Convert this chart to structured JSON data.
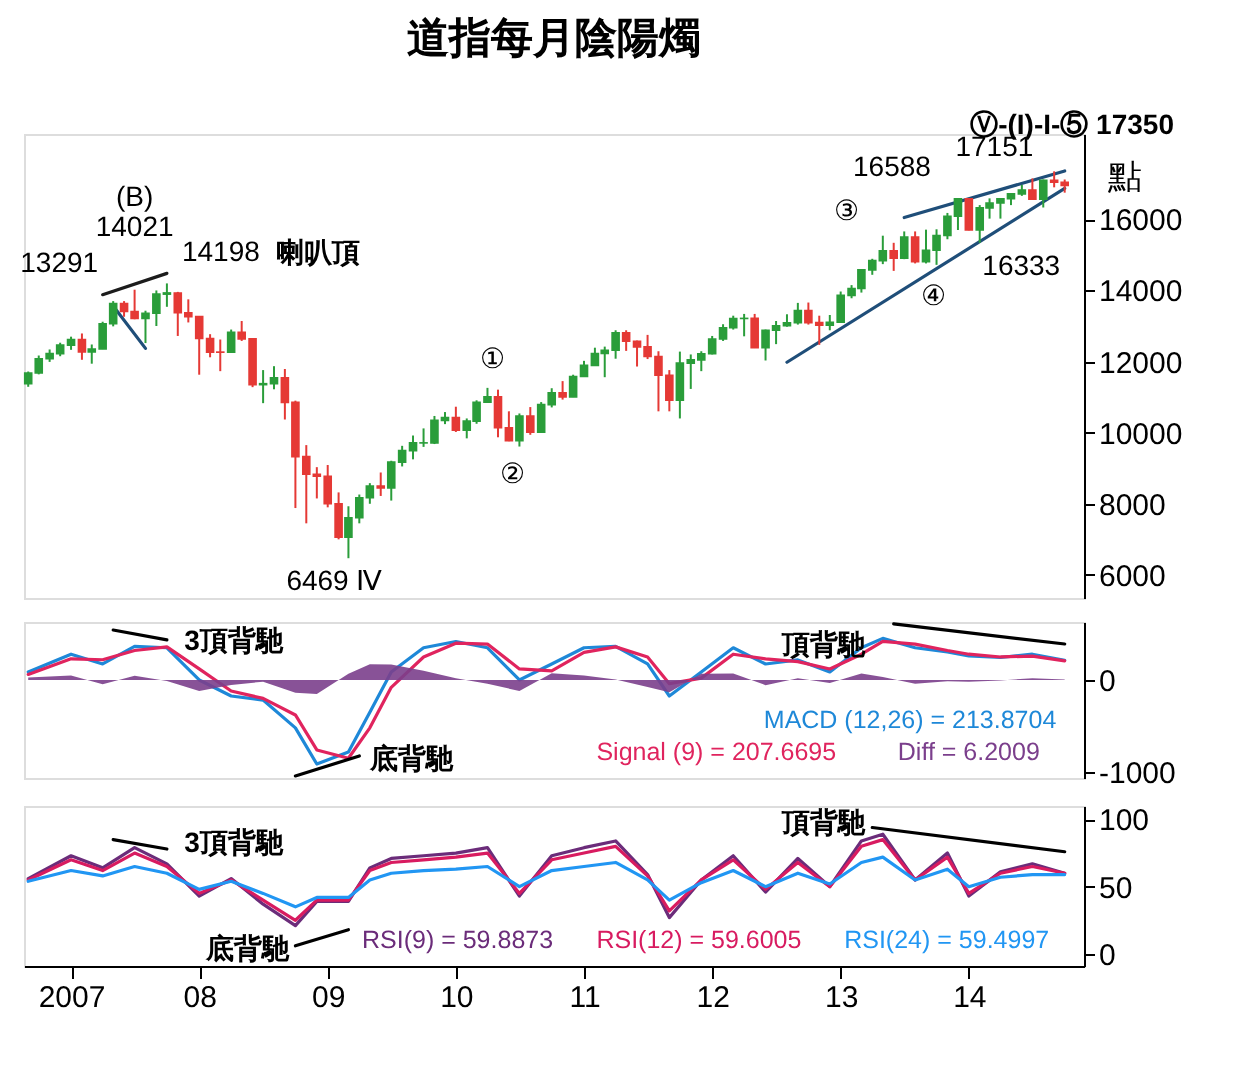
{
  "chart_data": [
    {
      "type": "candlestick",
      "title": "道指每月陰陽燭",
      "ylabel": "點",
      "tick_labels": "y",
      "grid": false,
      "xlim": [
        "2006-08-20",
        "2014-11-25"
      ],
      "ylim": [
        5350,
        18400
      ],
      "yticks": [
        6000,
        8000,
        10000,
        12000,
        14000,
        16000
      ],
      "x": [
        "2006-09",
        "2006-10",
        "2006-11",
        "2006-12",
        "2007-01",
        "2007-02",
        "2007-03",
        "2007-04",
        "2007-05",
        "2007-06",
        "2007-07",
        "2007-08",
        "2007-09",
        "2007-10",
        "2007-11",
        "2007-12",
        "2008-01",
        "2008-02",
        "2008-03",
        "2008-04",
        "2008-05",
        "2008-06",
        "2008-07",
        "2008-08",
        "2008-09",
        "2008-10",
        "2008-11",
        "2008-12",
        "2009-01",
        "2009-02",
        "2009-03",
        "2009-04",
        "2009-05",
        "2009-06",
        "2009-07",
        "2009-08",
        "2009-09",
        "2009-10",
        "2009-11",
        "2009-12",
        "2010-01",
        "2010-02",
        "2010-03",
        "2010-04",
        "2010-05",
        "2010-06",
        "2010-07",
        "2010-08",
        "2010-09",
        "2010-10",
        "2010-11",
        "2010-12",
        "2011-01",
        "2011-02",
        "2011-03",
        "2011-04",
        "2011-05",
        "2011-06",
        "2011-07",
        "2011-08",
        "2011-09",
        "2011-10",
        "2011-11",
        "2011-12",
        "2012-01",
        "2012-02",
        "2012-03",
        "2012-04",
        "2012-05",
        "2012-06",
        "2012-07",
        "2012-08",
        "2012-09",
        "2012-10",
        "2012-11",
        "2012-12",
        "2013-01",
        "2013-02",
        "2013-03",
        "2013-04",
        "2013-05",
        "2013-06",
        "2013-07",
        "2013-08",
        "2013-09",
        "2013-10",
        "2013-11",
        "2013-12",
        "2014-01",
        "2014-02",
        "2014-03",
        "2014-04",
        "2014-05",
        "2014-06",
        "2014-07",
        "2014-08",
        "2014-09",
        "2014-10"
      ],
      "ohlc": [
        [
          11380,
          11720,
          11290,
          11679
        ],
        [
          11679,
          12170,
          11640,
          12081
        ],
        [
          12081,
          12340,
          11990,
          12222
        ],
        [
          12222,
          12530,
          12150,
          12463
        ],
        [
          12463,
          12700,
          12330,
          12622
        ],
        [
          12622,
          12790,
          12050,
          12269
        ],
        [
          12269,
          12480,
          11940,
          12354
        ],
        [
          12354,
          13120,
          12350,
          13063
        ],
        [
          13063,
          13700,
          12990,
          13628
        ],
        [
          13628,
          13700,
          13260,
          13409
        ],
        [
          13409,
          14021,
          13190,
          13212
        ],
        [
          13212,
          13430,
          12520,
          13358
        ],
        [
          13358,
          14000,
          13000,
          13896
        ],
        [
          13896,
          14198,
          13540,
          13930
        ],
        [
          13930,
          13960,
          12720,
          13372
        ],
        [
          13372,
          13750,
          13100,
          13265
        ],
        [
          13265,
          13280,
          11630,
          12650
        ],
        [
          12650,
          12770,
          12120,
          12266
        ],
        [
          12266,
          12620,
          11730,
          12263
        ],
        [
          12263,
          12900,
          12240,
          12820
        ],
        [
          12820,
          13140,
          12580,
          12638
        ],
        [
          12638,
          12660,
          11280,
          11350
        ],
        [
          11350,
          11760,
          10830,
          11378
        ],
        [
          11378,
          11870,
          11220,
          11544
        ],
        [
          11544,
          11790,
          10370,
          10851
        ],
        [
          10851,
          10900,
          7880,
          9325
        ],
        [
          9325,
          9650,
          7450,
          8829
        ],
        [
          8829,
          9030,
          8150,
          8776
        ],
        [
          8776,
          9090,
          7900,
          8001
        ],
        [
          8001,
          8320,
          7000,
          7063
        ],
        [
          7063,
          7930,
          6469,
          7609
        ],
        [
          7609,
          8260,
          7450,
          8168
        ],
        [
          8168,
          8580,
          8000,
          8500
        ],
        [
          8500,
          8880,
          8220,
          8447
        ],
        [
          8447,
          9210,
          8090,
          9172
        ],
        [
          9172,
          9630,
          9050,
          9496
        ],
        [
          9496,
          9920,
          9250,
          9712
        ],
        [
          9712,
          10120,
          9600,
          9713
        ],
        [
          9713,
          10470,
          9680,
          10345
        ],
        [
          10345,
          10580,
          10240,
          10428
        ],
        [
          10428,
          10730,
          10020,
          10067
        ],
        [
          10067,
          10400,
          9840,
          10325
        ],
        [
          10325,
          10910,
          10250,
          10857
        ],
        [
          10857,
          11260,
          10840,
          11009
        ],
        [
          11009,
          11210,
          9870,
          10137
        ],
        [
          10137,
          10600,
          9760,
          9774
        ],
        [
          9774,
          10540,
          9610,
          10466
        ],
        [
          10466,
          10720,
          9940,
          10015
        ],
        [
          10015,
          10860,
          9990,
          10788
        ],
        [
          10788,
          11250,
          10710,
          11118
        ],
        [
          11118,
          11450,
          10930,
          11006
        ],
        [
          11006,
          11630,
          11000,
          11578
        ],
        [
          11578,
          12020,
          11570,
          11892
        ],
        [
          11892,
          12390,
          11880,
          12226
        ],
        [
          12226,
          12420,
          11560,
          12320
        ],
        [
          12320,
          12880,
          12080,
          12811
        ],
        [
          12811,
          12880,
          12300,
          12570
        ],
        [
          12570,
          12590,
          11860,
          12414
        ],
        [
          12414,
          12750,
          12070,
          12143
        ],
        [
          12143,
          12290,
          10600,
          11614
        ],
        [
          11614,
          11760,
          10600,
          10913
        ],
        [
          10913,
          12280,
          10400,
          11955
        ],
        [
          11955,
          12200,
          11230,
          12046
        ],
        [
          12046,
          12290,
          11730,
          12218
        ],
        [
          12218,
          12720,
          12200,
          12633
        ],
        [
          12633,
          13050,
          12580,
          12952
        ],
        [
          12952,
          13290,
          12900,
          13212
        ],
        [
          13212,
          13340,
          12710,
          13214
        ],
        [
          13214,
          13340,
          12380,
          12393
        ],
        [
          12393,
          12900,
          12030,
          12880
        ],
        [
          12880,
          13140,
          12490,
          13009
        ],
        [
          13009,
          13330,
          12980,
          13091
        ],
        [
          13091,
          13650,
          13040,
          13437
        ],
        [
          13437,
          13660,
          13040,
          13096
        ],
        [
          13096,
          13290,
          12470,
          13026
        ],
        [
          13026,
          13310,
          12880,
          13104
        ],
        [
          13104,
          13970,
          13100,
          13861
        ],
        [
          13861,
          14150,
          13780,
          14054
        ],
        [
          14054,
          14590,
          13940,
          14579
        ],
        [
          14579,
          14890,
          14440,
          14840
        ],
        [
          14840,
          15540,
          14740,
          15116
        ],
        [
          15116,
          15340,
          14550,
          14910
        ],
        [
          14910,
          15660,
          14880,
          15500
        ],
        [
          15500,
          15660,
          14760,
          14810
        ],
        [
          14810,
          15710,
          14760,
          15130
        ],
        [
          15130,
          15720,
          14720,
          15546
        ],
        [
          15546,
          16180,
          15440,
          16086
        ],
        [
          16086,
          16588,
          15700,
          16577
        ],
        [
          16577,
          16590,
          15690,
          15699
        ],
        [
          15699,
          16400,
          15340,
          16322
        ],
        [
          16322,
          16590,
          16020,
          16458
        ],
        [
          16458,
          16590,
          16020,
          16581
        ],
        [
          16581,
          16740,
          16400,
          16717
        ],
        [
          16717,
          16970,
          16660,
          16827
        ],
        [
          16827,
          17151,
          16560,
          16563
        ],
        [
          16563,
          17120,
          16333,
          17098
        ],
        [
          17098,
          17350,
          16900,
          17043
        ],
        [
          17043,
          17120,
          16750,
          16950
        ]
      ],
      "colors": [
        "#2a9d3a",
        "#2a9d3a",
        "#2a9d3a",
        "#2a9d3a",
        "#2a9d3a",
        "#e53935",
        "#2a9d3a",
        "#2a9d3a",
        "#2a9d3a",
        "#e53935",
        "#e53935",
        "#2a9d3a",
        "#2a9d3a",
        "#2a9d3a",
        "#e53935",
        "#e53935",
        "#e53935",
        "#e53935",
        "#e53935",
        "#2a9d3a",
        "#e53935",
        "#e53935",
        "#2a9d3a",
        "#2a9d3a",
        "#e53935",
        "#e53935",
        "#e53935",
        "#e53935",
        "#e53935",
        "#e53935",
        "#2a9d3a",
        "#2a9d3a",
        "#2a9d3a",
        "#e53935",
        "#2a9d3a",
        "#2a9d3a",
        "#2a9d3a",
        "#2a9d3a",
        "#2a9d3a",
        "#2a9d3a",
        "#e53935",
        "#2a9d3a",
        "#2a9d3a",
        "#2a9d3a",
        "#e53935",
        "#e53935",
        "#2a9d3a",
        "#e53935",
        "#2a9d3a",
        "#2a9d3a",
        "#e53935",
        "#2a9d3a",
        "#2a9d3a",
        "#2a9d3a",
        "#2a9d3a",
        "#2a9d3a",
        "#e53935",
        "#e53935",
        "#e53935",
        "#e53935",
        "#e53935",
        "#2a9d3a",
        "#2a9d3a",
        "#2a9d3a",
        "#2a9d3a",
        "#2a9d3a",
        "#2a9d3a",
        "#2a9d3a",
        "#e53935",
        "#2a9d3a",
        "#2a9d3a",
        "#2a9d3a",
        "#2a9d3a",
        "#e53935",
        "#e53935",
        "#2a9d3a",
        "#2a9d3a",
        "#2a9d3a",
        "#2a9d3a",
        "#2a9d3a",
        "#2a9d3a",
        "#e53935",
        "#2a9d3a",
        "#e53935",
        "#2a9d3a",
        "#2a9d3a",
        "#2a9d3a",
        "#2a9d3a",
        "#e53935",
        "#2a9d3a",
        "#2a9d3a",
        "#2a9d3a",
        "#2a9d3a",
        "#2a9d3a",
        "#e53935",
        "#2a9d3a",
        "#e53935",
        "#e53935"
      ],
      "series": [
        {
          "type": "line",
          "color": "#1c1c1c",
          "x": [
            "2007-04",
            "2007-10"
          ],
          "values": [
            13880,
            14480
          ]
        },
        {
          "type": "line",
          "color": "#1f4e79",
          "x": [
            "2007-05",
            "2007-08"
          ],
          "values": [
            13560,
            12370
          ]
        },
        {
          "type": "line",
          "color": "#1f4e79",
          "x": [
            "2013-07",
            "2014-10"
          ],
          "values": [
            16050,
            17360
          ]
        },
        {
          "type": "line",
          "color": "#1f4e79",
          "x": [
            "2012-08",
            "2014-10"
          ],
          "values": [
            11980,
            16870
          ]
        }
      ],
      "annotations": [
        {
          "text": "(B)",
          "x": "2007-07",
          "y": 14021
        },
        {
          "text": "14021",
          "x": "2007-07",
          "y": 14021
        },
        {
          "text": "13291",
          "x": "2007-05",
          "y": 13291
        },
        {
          "text": "14198",
          "x": "2007-10",
          "y": 14198
        },
        "喇叭頂",
        {
          "text": "6469 Ⅳ",
          "x": "2009-03",
          "y": 6469
        },
        {
          "text": "①",
          "x": "2010-04",
          "y": 11260
        },
        {
          "text": "②",
          "x": "2010-07",
          "y": 9610
        },
        {
          "text": "③",
          "x": "2013-05",
          "y": 15540
        },
        {
          "text": "16588",
          "x": "2013-12",
          "y": 16588
        },
        {
          "text": "17151",
          "x": "2014-07",
          "y": 17151
        },
        {
          "text": "16333",
          "x": "2014-08",
          "y": 16333
        },
        {
          "text": "④",
          "x": "2013-06",
          "y": 14550
        },
        "Ⓥ-(I)-I-⑤ 17350"
      ]
    },
    {
      "type": "line",
      "tick_labels": "y",
      "grid": false,
      "xlim": [
        "2006-08-20",
        "2014-11-25"
      ],
      "ylim": [
        -1065,
        630
      ],
      "yticks": [
        -1000,
        0
      ],
      "series": [
        {
          "name": "MACD (12,26) = 213.8704",
          "color": "#1e88d8",
          "x": [
            "2006-09",
            "2007-01",
            "2007-04",
            "2007-07",
            "2007-10",
            "2008-01",
            "2008-04",
            "2008-07",
            "2008-10",
            "2008-12",
            "2009-03",
            "2009-05",
            "2009-07",
            "2009-10",
            "2010-01",
            "2010-04",
            "2010-07",
            "2010-10",
            "2011-01",
            "2011-04",
            "2011-07",
            "2011-09",
            "2011-12",
            "2012-03",
            "2012-06",
            "2012-09",
            "2012-12",
            "2013-03",
            "2013-05",
            "2013-08",
            "2013-11",
            "2014-01",
            "2014-04",
            "2014-07",
            "2014-10"
          ],
          "values": [
            87,
            280,
            174,
            365,
            350,
            0,
            -174,
            -218,
            -520,
            -913,
            -783,
            -350,
            87,
            350,
            418,
            350,
            0,
            174,
            350,
            365,
            174,
            -174,
            87,
            350,
            174,
            218,
            87,
            350,
            452,
            350,
            305,
            261,
            244,
            280,
            214
          ]
        },
        {
          "name": "Signal (9) = 207.6695",
          "color": "#e0245e",
          "x": [
            "2006-09",
            "2007-01",
            "2007-04",
            "2007-07",
            "2007-10",
            "2008-01",
            "2008-04",
            "2008-07",
            "2008-10",
            "2008-12",
            "2009-03",
            "2009-05",
            "2009-07",
            "2009-10",
            "2010-01",
            "2010-04",
            "2010-07",
            "2010-10",
            "2011-01",
            "2011-04",
            "2011-07",
            "2011-09",
            "2011-12",
            "2012-03",
            "2012-06",
            "2012-09",
            "2012-12",
            "2013-03",
            "2013-05",
            "2013-08",
            "2013-11",
            "2014-01",
            "2014-04",
            "2014-07",
            "2014-10"
          ],
          "values": [
            60,
            230,
            220,
            320,
            360,
            120,
            -120,
            -200,
            -380,
            -760,
            -850,
            -520,
            -80,
            250,
            400,
            390,
            120,
            100,
            300,
            360,
            250,
            -40,
            20,
            280,
            230,
            200,
            120,
            280,
            420,
            390,
            320,
            280,
            250,
            260,
            208
          ]
        },
        {
          "name": "Diff = 6.2009",
          "type": "area",
          "color": "#7b3f8c",
          "x": [
            "2006-09",
            "2007-01",
            "2007-04",
            "2007-07",
            "2007-10",
            "2008-01",
            "2008-04",
            "2008-07",
            "2008-10",
            "2008-12",
            "2009-03",
            "2009-05",
            "2009-07",
            "2009-10",
            "2010-01",
            "2010-04",
            "2010-07",
            "2010-10",
            "2011-01",
            "2011-04",
            "2011-07",
            "2011-09",
            "2011-12",
            "2012-03",
            "2012-06",
            "2012-09",
            "2012-12",
            "2013-03",
            "2013-05",
            "2013-08",
            "2013-11",
            "2014-01",
            "2014-04",
            "2014-07",
            "2014-10"
          ],
          "values": [
            27,
            50,
            -46,
            45,
            -10,
            -120,
            -54,
            -18,
            -140,
            -153,
            67,
            170,
            167,
            100,
            18,
            -40,
            -120,
            74,
            50,
            5,
            -76,
            -134,
            67,
            70,
            -56,
            18,
            -33,
            70,
            32,
            -40,
            -15,
            -19,
            -6,
            20,
            6
          ]
        },
        {
          "type": "line",
          "color": "#000000",
          "x": [
            "2007-05",
            "2007-10"
          ],
          "values": [
            543,
            435
          ]
        },
        {
          "type": "line",
          "color": "#000000",
          "x": [
            "2008-10",
            "2009-04"
          ],
          "values": [
            -1043,
            -826
          ]
        },
        {
          "type": "line",
          "color": "#000000",
          "x": [
            "2013-06",
            "2014-10"
          ],
          "values": [
            609,
            391
          ]
        }
      ],
      "annotations": [
        "3頂背馳",
        "底背馳",
        "頂背馳"
      ]
    },
    {
      "type": "line",
      "grid": false,
      "xlim": [
        "2006-08-20",
        "2014-11-25"
      ],
      "xticks": [
        {
          "value": "2007-01",
          "label": "2007"
        },
        {
          "value": "2008-01",
          "label": "08"
        },
        {
          "value": "2009-01",
          "label": "09"
        },
        {
          "value": "2010-01",
          "label": "10"
        },
        {
          "value": "2011-01",
          "label": "11"
        },
        {
          "value": "2012-01",
          "label": "12"
        },
        {
          "value": "2013-01",
          "label": "13"
        },
        {
          "value": "2014-01",
          "label": "14"
        }
      ],
      "ylim": [
        -9,
        110
      ],
      "yticks": [
        0,
        50,
        100
      ],
      "series": [
        {
          "name": "RSI(9) = 59.8873",
          "color": "#6b2c7a",
          "x": [
            "2006-09",
            "2007-01",
            "2007-04",
            "2007-07",
            "2007-10",
            "2008-01",
            "2008-04",
            "2008-07",
            "2008-10",
            "2008-12",
            "2009-03",
            "2009-05",
            "2009-07",
            "2009-10",
            "2010-01",
            "2010-04",
            "2010-07",
            "2010-10",
            "2011-01",
            "2011-04",
            "2011-07",
            "2011-09",
            "2011-12",
            "2012-03",
            "2012-06",
            "2012-09",
            "2012-12",
            "2013-03",
            "2013-05",
            "2013-08",
            "2013-11",
            "2014-01",
            "2014-04",
            "2014-07",
            "2014-10"
          ],
          "values": [
            56,
            73,
            64,
            79,
            67,
            43,
            56,
            37,
            21,
            39,
            39,
            64,
            71,
            73,
            75,
            79,
            43,
            73,
            79,
            84,
            59,
            27,
            55,
            73,
            46,
            71,
            50,
            84,
            89,
            55,
            75,
            43,
            61,
            67,
            60
          ]
        },
        {
          "name": "RSI(12) = 59.6005",
          "color": "#d81b60",
          "x": [
            "2006-09",
            "2007-01",
            "2007-04",
            "2007-07",
            "2007-10",
            "2008-01",
            "2008-04",
            "2008-07",
            "2008-10",
            "2008-12",
            "2009-03",
            "2009-05",
            "2009-07",
            "2009-10",
            "2010-01",
            "2010-04",
            "2010-07",
            "2010-10",
            "2011-01",
            "2011-04",
            "2011-07",
            "2011-09",
            "2011-12",
            "2012-03",
            "2012-06",
            "2012-09",
            "2012-12",
            "2013-03",
            "2013-05",
            "2013-08",
            "2013-11",
            "2014-01",
            "2014-04",
            "2014-07",
            "2014-10"
          ],
          "values": [
            55,
            70,
            62,
            75,
            65,
            45,
            55,
            40,
            25,
            40,
            40,
            62,
            68,
            70,
            72,
            75,
            45,
            70,
            75,
            80,
            58,
            32,
            55,
            70,
            48,
            68,
            50,
            80,
            85,
            55,
            72,
            45,
            60,
            65,
            60
          ]
        },
        {
          "name": "RSI(24) = 59.4997",
          "color": "#2196f3",
          "x": [
            "2006-09",
            "2007-01",
            "2007-04",
            "2007-07",
            "2007-10",
            "2008-01",
            "2008-04",
            "2008-07",
            "2008-10",
            "2008-12",
            "2009-03",
            "2009-05",
            "2009-07",
            "2009-10",
            "2010-01",
            "2010-04",
            "2010-07",
            "2010-10",
            "2011-01",
            "2011-04",
            "2011-07",
            "2011-09",
            "2011-12",
            "2012-03",
            "2012-06",
            "2012-09",
            "2012-12",
            "2013-03",
            "2013-05",
            "2013-08",
            "2013-11",
            "2014-01",
            "2014-04",
            "2014-07",
            "2014-10"
          ],
          "values": [
            54,
            62,
            58,
            65,
            60,
            48,
            54,
            45,
            35,
            42,
            42,
            55,
            60,
            62,
            63,
            65,
            50,
            62,
            65,
            68,
            55,
            40,
            53,
            62,
            50,
            60,
            52,
            68,
            72,
            55,
            63,
            50,
            57,
            59,
            59
          ]
        },
        {
          "type": "line",
          "color": "#000000",
          "x": [
            "2007-05",
            "2007-10"
          ],
          "values": [
            85,
            78
          ]
        },
        {
          "type": "line",
          "color": "#000000",
          "x": [
            "2008-10",
            "2009-03"
          ],
          "values": [
            6,
            18
          ]
        },
        {
          "type": "line",
          "color": "#000000",
          "x": [
            "2013-04",
            "2014-10"
          ],
          "values": [
            94,
            76
          ]
        }
      ],
      "annotations": [
        "3頂背馳",
        "底背馳",
        "頂背馳"
      ]
    }
  ]
}
